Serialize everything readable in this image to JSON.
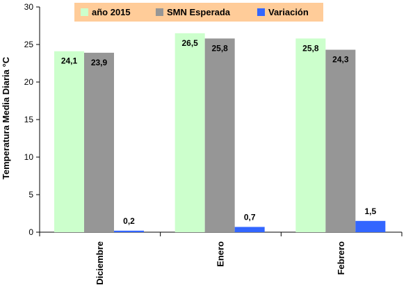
{
  "chart_data": {
    "type": "bar",
    "categories": [
      "Diciembre",
      "Enero",
      "Febrero"
    ],
    "series": [
      {
        "name": "año 2015",
        "values": [
          24.1,
          26.5,
          25.8
        ],
        "labels": [
          "24,1",
          "26,5",
          "25,8"
        ],
        "color": "#ccffcc"
      },
      {
        "name": "SMN Esperada",
        "values": [
          23.9,
          25.8,
          24.3
        ],
        "labels": [
          "23,9",
          "25,8",
          "24,3"
        ],
        "color": "#969696"
      },
      {
        "name": "Variación",
        "values": [
          0.2,
          0.7,
          1.5
        ],
        "labels": [
          "0,2",
          "0,7",
          "1,5"
        ],
        "color": "#3366ff"
      }
    ],
    "ylabel": "Temperatura Media Diaria °C",
    "xlabel": "",
    "ylim": [
      0,
      30
    ],
    "yticks": [
      "0",
      "5",
      "10",
      "15",
      "20",
      "25",
      "30"
    ],
    "grid": false,
    "legend": {
      "placement": "top-center",
      "background": "#ffcc99"
    }
  }
}
